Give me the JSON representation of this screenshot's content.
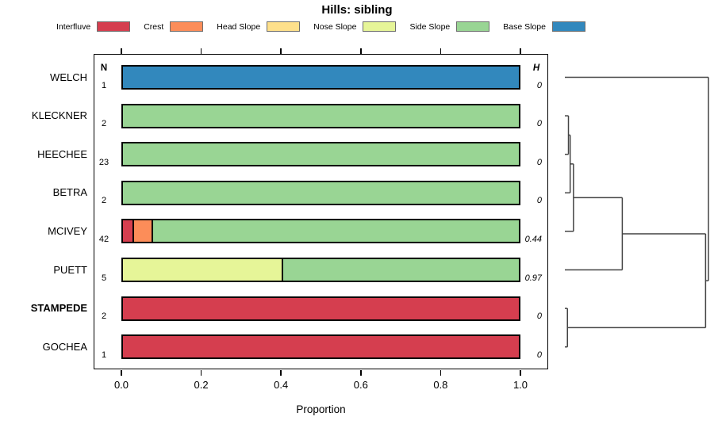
{
  "chart_data": {
    "type": "bar",
    "variant": "horizontal-stacked-proportions-with-dendrogram",
    "title": "Hills: sibling",
    "xlabel": "Proportion",
    "xlim": [
      0,
      1
    ],
    "xticks": [
      "0.0",
      "0.2",
      "0.4",
      "0.6",
      "0.8",
      "1.0"
    ],
    "grid": false,
    "n_header": "N",
    "h_header": "H",
    "classes": [
      {
        "name": "Interfluve",
        "color": "#D53E4F"
      },
      {
        "name": "Crest",
        "color": "#FC8D59"
      },
      {
        "name": "Head Slope",
        "color": "#FEE08B"
      },
      {
        "name": "Nose Slope",
        "color": "#E6F598"
      },
      {
        "name": "Side Slope",
        "color": "#99D594"
      },
      {
        "name": "Base Slope",
        "color": "#3288BD"
      }
    ],
    "rows": [
      {
        "label": "WELCH",
        "n": "1",
        "h": "0",
        "bold": false,
        "segments": [
          {
            "class": "Base Slope",
            "value": 1.0
          }
        ]
      },
      {
        "label": "KLECKNER",
        "n": "2",
        "h": "0",
        "bold": false,
        "segments": [
          {
            "class": "Side Slope",
            "value": 1.0
          }
        ]
      },
      {
        "label": "HEECHEE",
        "n": "23",
        "h": "0",
        "bold": false,
        "segments": [
          {
            "class": "Side Slope",
            "value": 1.0
          }
        ]
      },
      {
        "label": "BETRA",
        "n": "2",
        "h": "0",
        "bold": false,
        "segments": [
          {
            "class": "Side Slope",
            "value": 1.0
          }
        ]
      },
      {
        "label": "MCIVEY",
        "n": "42",
        "h": "0.44",
        "bold": false,
        "segments": [
          {
            "class": "Interfluve",
            "value": 0.024
          },
          {
            "class": "Crest",
            "value": 0.048
          },
          {
            "class": "Side Slope",
            "value": 0.928
          }
        ]
      },
      {
        "label": "PUETT",
        "n": "5",
        "h": "0.97",
        "bold": false,
        "segments": [
          {
            "class": "Nose Slope",
            "value": 0.4
          },
          {
            "class": "Side Slope",
            "value": 0.6
          }
        ]
      },
      {
        "label": "STAMPEDE",
        "n": "2",
        "h": "0",
        "bold": true,
        "segments": [
          {
            "class": "Interfluve",
            "value": 1.0
          }
        ]
      },
      {
        "label": "GOCHEA",
        "n": "1",
        "h": "0",
        "bold": false,
        "segments": [
          {
            "class": "Interfluve",
            "value": 1.0
          }
        ]
      }
    ],
    "dendrogram": {
      "orientation": "leaves-left-root-right",
      "merges": [
        {
          "a": 1,
          "b": 2,
          "h": 0.025
        },
        {
          "a": "m0",
          "b": 3,
          "h": 0.037
        },
        {
          "a": "m1",
          "b": 4,
          "h": 0.06
        },
        {
          "a": "m2",
          "b": 5,
          "h": 0.4
        },
        {
          "a": 6,
          "b": 7,
          "h": 0.018
        },
        {
          "a": "m3",
          "b": "m4",
          "h": 0.98
        },
        {
          "a": 0,
          "b": "m5",
          "h": 1.0
        }
      ]
    }
  }
}
